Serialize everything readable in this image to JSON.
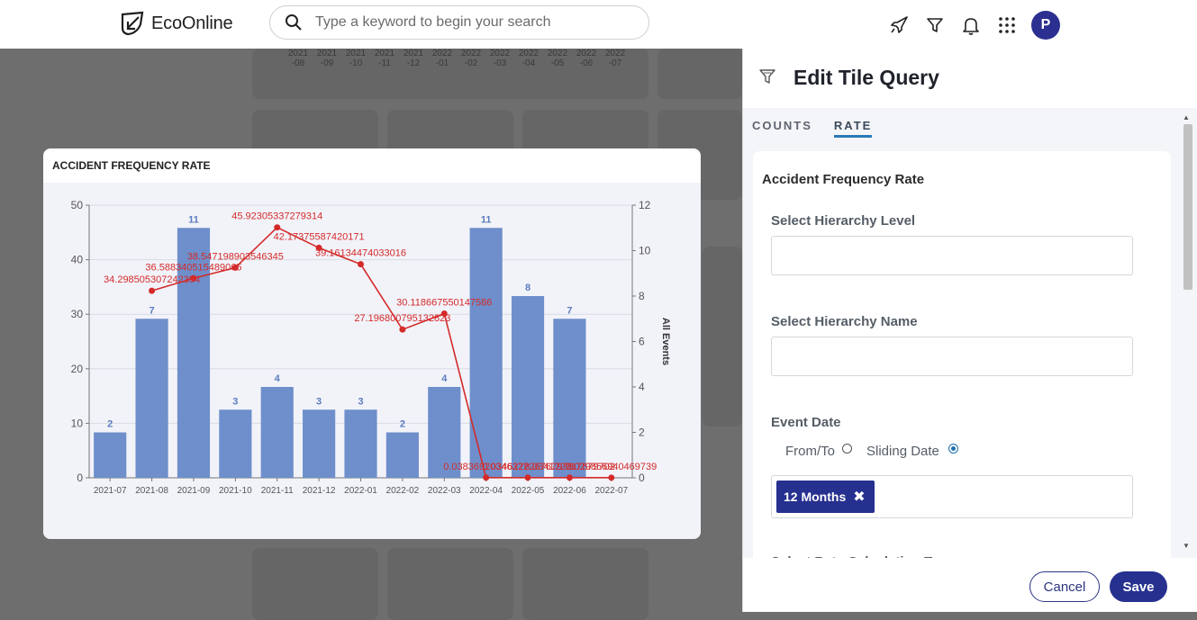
{
  "app": {
    "brand": "EcoOnline"
  },
  "search": {
    "placeholder": "Type a keyword to begin your search"
  },
  "header_icons": [
    "rocket-icon",
    "filter-icon",
    "bell-icon",
    "apps-grid-icon"
  ],
  "user": {
    "avatar_initial": "P",
    "avatar_color": "#2b2f8f"
  },
  "background_months": [
    "2021\n-08",
    "2021\n-09",
    "2021\n-10",
    "2021\n-11",
    "2021\n-12",
    "2022\n-01",
    "2022\n-02",
    "2022\n-03",
    "2022\n-04",
    "2022\n-05",
    "2022\n-06",
    "2022\n-07"
  ],
  "modal": {
    "title": "ACCIDENT FREQUENCY RATE"
  },
  "chart_data": {
    "type": "bar",
    "title": "ACCIDENT FREQUENCY RATE",
    "categories": [
      "2021-07",
      "2021-08",
      "2021-09",
      "2021-10",
      "2021-11",
      "2021-12",
      "2022-01",
      "2022-02",
      "2022-03",
      "2022-04",
      "2022-05",
      "2022-06",
      "2022-07"
    ],
    "series": [
      {
        "name": "All Events",
        "type": "bar",
        "axis": "right",
        "color": "#6e8fcb",
        "values": [
          2,
          7,
          11,
          3,
          4,
          3,
          3,
          2,
          4,
          11,
          8,
          7,
          null
        ],
        "labels": [
          "2",
          "7",
          "11",
          "3",
          "4",
          "3",
          "3",
          "2",
          "4",
          "11",
          "8",
          "7",
          ""
        ]
      },
      {
        "type": "line",
        "axis": "left",
        "color": "#d42a2a",
        "values": [
          null,
          34.298505307242394,
          36.588340515489065,
          38.547198903546345,
          45.92305337279314,
          42.17375587420171,
          39.16134474033016,
          27.196800795132823,
          30.118667550147585,
          0.03836920346377,
          0.034622226767979,
          0.034122217679702,
          0.029856940469739
        ],
        "labels": [
          "",
          "34.298505307242394",
          "36.588340515489065",
          "38.547198903546345",
          "45.92305337279314",
          "42.17375587420171",
          "39.16134474033016",
          "27.196800795132823",
          "30.118667550147586",
          "0.03836920346377",
          "0.034622226767979",
          "0.034122217679702",
          "0.029856940469739"
        ]
      }
    ],
    "left_axis": {
      "min": 0,
      "max": 50,
      "ticks": [
        "0",
        "10",
        "20",
        "30",
        "40",
        "50"
      ]
    },
    "right_axis": {
      "label": "All Events",
      "min": 0,
      "max": 12,
      "ticks": [
        "0",
        "2",
        "4",
        "6",
        "8",
        "10",
        "12"
      ]
    },
    "grid": true
  },
  "panel": {
    "title": "Edit Tile Query",
    "tabs": [
      {
        "label": "COUNTS",
        "active": false
      },
      {
        "label": "RATE",
        "active": true
      }
    ],
    "form_heading": "Accident Frequency Rate",
    "fields": {
      "hierarchy_level_label": "Select Hierarchy Level",
      "hierarchy_level_value": "",
      "hierarchy_name_label": "Select Hierarchy Name",
      "hierarchy_name_value": "",
      "event_date_label": "Event Date",
      "from_to_label": "From/To",
      "sliding_date_label": "Sliding Date",
      "selected_option": "Sliding Date",
      "chip_label": "12 Months",
      "next_label_partial": "Select Rate Calculation Type"
    },
    "buttons": {
      "cancel": "Cancel",
      "save": "Save"
    },
    "accent_color": "#25308f"
  }
}
